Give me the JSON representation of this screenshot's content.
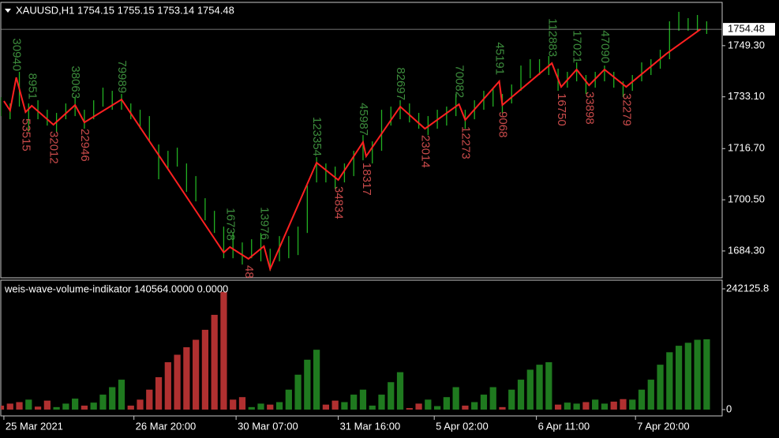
{
  "chart_data": [
    {
      "type": "ohlc",
      "title": "XAUUSD,H1  1754.15 1755.15 1753.14 1754.48",
      "color": "#22b022",
      "xlim": [
        0,
        233
      ],
      "ylim": [
        1675.8,
        1763.0
      ],
      "yticks": [
        {
          "value": 1684.3,
          "label": "1684.30"
        },
        {
          "value": 1700.5,
          "label": "1700.50"
        },
        {
          "value": 1716.7,
          "label": "1716.70"
        },
        {
          "value": 1733.1,
          "label": "1733.10"
        },
        {
          "value": 1749.3,
          "label": "1749.30"
        }
      ],
      "last_price": 1754.48,
      "x": [
        0,
        3,
        6,
        9,
        12,
        15,
        18,
        21,
        24,
        27,
        30,
        33,
        36,
        39,
        42,
        45,
        48,
        51,
        54,
        57,
        60,
        63,
        66,
        69,
        72,
        75,
        78,
        81,
        84,
        87,
        90,
        93,
        96,
        99,
        102,
        105,
        108,
        111,
        114,
        117,
        120,
        123,
        126,
        129,
        132,
        135,
        138,
        141,
        144,
        147,
        150,
        153,
        156,
        159,
        162,
        165,
        168,
        171,
        174,
        177,
        180,
        183,
        186,
        189,
        192,
        195,
        198,
        201,
        204,
        207,
        210,
        213,
        216,
        219,
        222,
        225,
        228
      ],
      "high": [
        1733,
        1731,
        1741,
        1731,
        1732,
        1729,
        1728,
        1731,
        1733,
        1729,
        1732,
        1736,
        1735,
        1734,
        1731,
        1729,
        1727,
        1718,
        1716,
        1717,
        1712,
        1708,
        1701,
        1697,
        1692,
        1690,
        1687,
        1688,
        1690,
        1685,
        1689,
        1689,
        1692,
        1705,
        1714,
        1712,
        1711,
        1712,
        1716,
        1721,
        1719,
        1729,
        1730,
        1732,
        1731,
        1728,
        1727,
        1729,
        1730,
        1734,
        1729,
        1732,
        1735,
        1736,
        1734,
        1737,
        1743,
        1745,
        1745,
        1746,
        1742,
        1741,
        1744,
        1740,
        1741,
        1743,
        1741,
        1738,
        1740,
        1744,
        1745,
        1748,
        1757,
        1760,
        1758,
        1759,
        1757
      ],
      "low": [
        1727,
        1726,
        1730,
        1722,
        1726,
        1724,
        1722,
        1726,
        1727,
        1723,
        1726,
        1730,
        1729,
        1729,
        1726,
        1723,
        1719,
        1707,
        1710,
        1711,
        1703,
        1700,
        1694,
        1690,
        1682,
        1682,
        1680,
        1682,
        1681,
        1678,
        1681,
        1682,
        1683,
        1690,
        1706,
        1706,
        1704,
        1706,
        1708,
        1713,
        1712,
        1716,
        1724,
        1726,
        1725,
        1723,
        1721,
        1723,
        1724,
        1727,
        1723,
        1726,
        1729,
        1730,
        1728,
        1731,
        1735,
        1739,
        1740,
        1740,
        1735,
        1736,
        1738,
        1734,
        1736,
        1738,
        1736,
        1733,
        1735,
        1738,
        1740,
        1742,
        1745,
        1754,
        1754,
        1754,
        1753
      ],
      "zigzag": {
        "color": "#ff2020",
        "up_label_color": "#3c8c3c",
        "down_label_color": "#c84a4a",
        "x": [
          1,
          3,
          5,
          8,
          10,
          17,
          24,
          27,
          39,
          72,
          74,
          80,
          85,
          87,
          102,
          109,
          117,
          118,
          129,
          137,
          148,
          150,
          161,
          162,
          178,
          181,
          186,
          190,
          195,
          202,
          215,
          226
        ],
        "values": [
          1731.75,
          1728.76,
          1739.24,
          1728.26,
          1730.26,
          1724.26,
          1730.5,
          1725.01,
          1732.25,
          1683.8,
          1685.55,
          1681.8,
          1685.8,
          1678.56,
          1712.27,
          1706.78,
          1718.77,
          1714.27,
          1730.0,
          1723.01,
          1730.75,
          1725.76,
          1738.0,
          1730.5,
          1743.74,
          1736.25,
          1741.74,
          1736.75,
          1741.74,
          1736.25,
          1746.74,
          1754.48
        ],
        "labels": [
          null,
          null,
          30940,
          53515,
          8951,
          32012,
          38063,
          22946,
          79989,
          null,
          16738,
          48,
          13976,
          null,
          123354,
          34834,
          45987,
          18317,
          82697,
          23014,
          70082,
          12273,
          45191,
          9068,
          112883,
          16750,
          17021,
          33898,
          47090,
          32279,
          null,
          null
        ]
      }
    },
    {
      "type": "histogram",
      "title": "weis-wave-volume-indikator 140564.0000 0.0000",
      "up_color": "#1f7a1f",
      "down_color": "#b03030",
      "xlim": [
        0,
        233
      ],
      "ylim": [
        -12660,
        259530
      ],
      "yticks": [
        0,
        242125.8
      ],
      "xticks": [
        {
          "value": 1,
          "label": "25 Mar 2021"
        },
        {
          "value": 43,
          "label": "26 Mar 20:00"
        },
        {
          "value": 76,
          "label": "30 Mar 07:00"
        },
        {
          "value": 109,
          "label": "31 Mar 16:00"
        },
        {
          "value": 140,
          "label": "5 Apr 02:00"
        },
        {
          "value": 173,
          "label": "6 Apr 11:00"
        },
        {
          "value": 205,
          "label": "7 Apr 20:00"
        }
      ],
      "x": [
        0,
        3,
        6,
        9,
        12,
        15,
        18,
        21,
        24,
        27,
        30,
        33,
        36,
        39,
        42,
        45,
        48,
        51,
        54,
        57,
        60,
        63,
        66,
        69,
        72,
        75,
        78,
        81,
        84,
        87,
        90,
        93,
        96,
        99,
        102,
        105,
        108,
        111,
        114,
        117,
        120,
        123,
        126,
        129,
        132,
        135,
        138,
        141,
        144,
        147,
        150,
        153,
        156,
        159,
        162,
        165,
        168,
        171,
        174,
        177,
        180,
        183,
        186,
        189,
        192,
        195,
        198,
        201,
        204,
        207,
        210,
        213,
        216,
        219,
        222,
        225,
        228
      ],
      "values": [
        8000,
        12000,
        15000,
        20000,
        6000,
        18000,
        5000,
        12000,
        22000,
        8000,
        14000,
        30000,
        45000,
        60000,
        8000,
        20000,
        40000,
        65000,
        95000,
        110000,
        125000,
        140000,
        160000,
        190000,
        236000,
        20000,
        25000,
        5000,
        12000,
        10000,
        15000,
        40000,
        70000,
        100000,
        120000,
        10000,
        18000,
        15000,
        30000,
        40000,
        8000,
        30000,
        55000,
        75000,
        3000,
        12000,
        20000,
        7000,
        25000,
        45000,
        8000,
        15000,
        30000,
        45000,
        5000,
        40000,
        60000,
        80000,
        90000,
        95000,
        10000,
        14000,
        12000,
        15000,
        20000,
        12000,
        16000,
        21000,
        20000,
        40000,
        60000,
        90000,
        115000,
        128000,
        134000,
        140000,
        141000
      ]
    }
  ]
}
